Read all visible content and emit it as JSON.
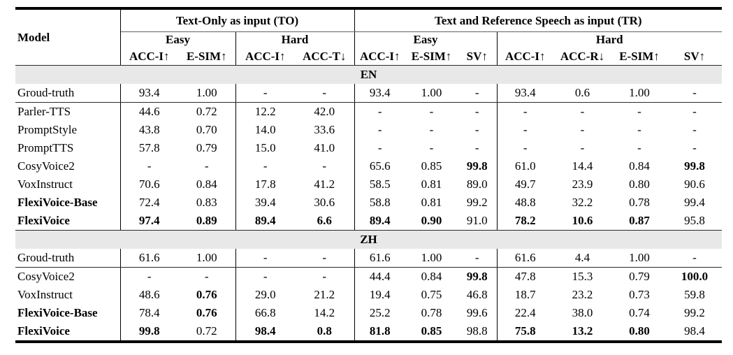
{
  "colors": {
    "band_bg": "#e8e8e8",
    "rule_color": "#000000"
  },
  "table": {
    "model_header": "Model",
    "groups": [
      {
        "label": "Text-Only as input (TO)",
        "sub": [
          {
            "label": "Easy",
            "metrics": [
              "ACC-I↑",
              "E-SIM↑"
            ]
          },
          {
            "label": "Hard",
            "metrics": [
              "ACC-I↑",
              "ACC-T↓"
            ]
          }
        ]
      },
      {
        "label": "Text and Reference Speech as input (TR)",
        "sub": [
          {
            "label": "Easy",
            "metrics": [
              "ACC-I↑",
              "E-SIM↑",
              "SV↑"
            ]
          },
          {
            "label": "Hard",
            "metrics": [
              "ACC-I↑",
              "ACC-R↓",
              "E-SIM↑",
              "SV↑"
            ]
          }
        ]
      }
    ],
    "sections": [
      {
        "label": "EN",
        "rows": [
          {
            "model": "Groud-truth",
            "bold_model": false,
            "values": [
              "93.4",
              "1.00",
              "-",
              "-",
              "93.4",
              "1.00",
              "-",
              "93.4",
              "0.6",
              "1.00",
              "-"
            ],
            "bold_values": [],
            "rule_below": true
          },
          {
            "model": "Parler-TTS",
            "bold_model": false,
            "values": [
              "44.6",
              "0.72",
              "12.2",
              "42.0",
              "-",
              "-",
              "-",
              "-",
              "-",
              "-",
              "-"
            ],
            "bold_values": [],
            "rule_below": false
          },
          {
            "model": "PromptStyle",
            "bold_model": false,
            "values": [
              "43.8",
              "0.70",
              "14.0",
              "33.6",
              "-",
              "-",
              "-",
              "-",
              "-",
              "-",
              "-"
            ],
            "bold_values": [],
            "rule_below": false
          },
          {
            "model": "PromptTTS",
            "bold_model": false,
            "values": [
              "57.8",
              "0.79",
              "15.0",
              "41.0",
              "-",
              "-",
              "-",
              "-",
              "-",
              "-",
              "-"
            ],
            "bold_values": [],
            "rule_below": false
          },
          {
            "model": "CosyVoice2",
            "bold_model": false,
            "values": [
              "-",
              "-",
              "-",
              "-",
              "65.6",
              "0.85",
              "99.8",
              "61.0",
              "14.4",
              "0.84",
              "99.8"
            ],
            "bold_values": [
              6,
              10
            ],
            "rule_below": false
          },
          {
            "model": "VoxInstruct",
            "bold_model": false,
            "values": [
              "70.6",
              "0.84",
              "17.8",
              "41.2",
              "58.5",
              "0.81",
              "89.0",
              "49.7",
              "23.9",
              "0.80",
              "90.6"
            ],
            "bold_values": [],
            "rule_below": false
          },
          {
            "model": "FlexiVoice-Base",
            "bold_model": true,
            "values": [
              "72.4",
              "0.83",
              "39.4",
              "30.6",
              "58.8",
              "0.81",
              "99.2",
              "48.8",
              "32.2",
              "0.78",
              "99.4"
            ],
            "bold_values": [],
            "rule_below": false
          },
          {
            "model": "FlexiVoice",
            "bold_model": true,
            "values": [
              "97.4",
              "0.89",
              "89.4",
              "6.6",
              "89.4",
              "0.90",
              "91.0",
              "78.2",
              "10.6",
              "0.87",
              "95.8"
            ],
            "bold_values": [
              0,
              1,
              2,
              3,
              4,
              5,
              7,
              8,
              9
            ],
            "rule_below": true
          }
        ]
      },
      {
        "label": "ZH",
        "rows": [
          {
            "model": "Groud-truth",
            "bold_model": false,
            "values": [
              "61.6",
              "1.00",
              "-",
              "-",
              "61.6",
              "1.00",
              "-",
              "61.6",
              "4.4",
              "1.00",
              "-"
            ],
            "bold_values": [],
            "rule_below": true
          },
          {
            "model": "CosyVoice2",
            "bold_model": false,
            "values": [
              "-",
              "-",
              "-",
              "-",
              "44.4",
              "0.84",
              "99.8",
              "47.8",
              "15.3",
              "0.79",
              "100.0"
            ],
            "bold_values": [
              6,
              10
            ],
            "rule_below": false
          },
          {
            "model": "VoxInstruct",
            "bold_model": false,
            "values": [
              "48.6",
              "0.76",
              "29.0",
              "21.2",
              "19.4",
              "0.75",
              "46.8",
              "18.7",
              "23.2",
              "0.73",
              "59.8"
            ],
            "bold_values": [
              1
            ],
            "rule_below": false
          },
          {
            "model": "FlexiVoice-Base",
            "bold_model": true,
            "values": [
              "78.4",
              "0.76",
              "66.8",
              "14.2",
              "25.2",
              "0.78",
              "99.6",
              "22.4",
              "38.0",
              "0.74",
              "99.2"
            ],
            "bold_values": [
              1
            ],
            "rule_below": false
          },
          {
            "model": "FlexiVoice",
            "bold_model": true,
            "values": [
              "99.8",
              "0.72",
              "98.4",
              "0.8",
              "81.8",
              "0.85",
              "98.8",
              "75.8",
              "13.2",
              "0.80",
              "98.4"
            ],
            "bold_values": [
              0,
              2,
              3,
              4,
              5,
              7,
              8,
              9
            ],
            "rule_below": false
          }
        ]
      }
    ]
  }
}
